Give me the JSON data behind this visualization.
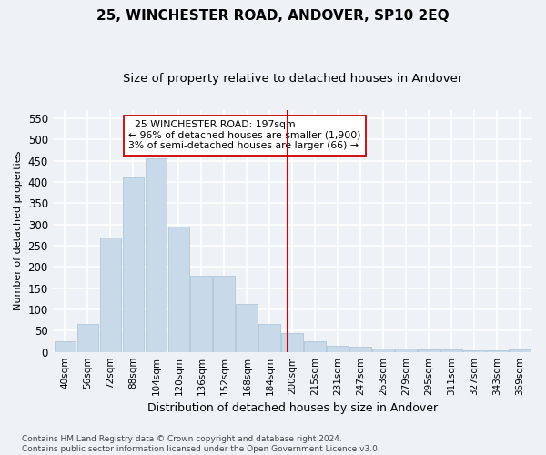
{
  "title": "25, WINCHESTER ROAD, ANDOVER, SP10 2EQ",
  "subtitle": "Size of property relative to detached houses in Andover",
  "xlabel": "Distribution of detached houses by size in Andover",
  "ylabel": "Number of detached properties",
  "footnote": "Contains HM Land Registry data © Crown copyright and database right 2024.\nContains public sector information licensed under the Open Government Licence v3.0.",
  "bins": [
    "40sqm",
    "56sqm",
    "72sqm",
    "88sqm",
    "104sqm",
    "120sqm",
    "136sqm",
    "152sqm",
    "168sqm",
    "184sqm",
    "200sqm",
    "215sqm",
    "231sqm",
    "247sqm",
    "263sqm",
    "279sqm",
    "295sqm",
    "311sqm",
    "327sqm",
    "343sqm",
    "359sqm"
  ],
  "bar_values": [
    25,
    65,
    270,
    410,
    455,
    295,
    180,
    180,
    113,
    65,
    45,
    25,
    15,
    13,
    8,
    8,
    5,
    5,
    3,
    3,
    5
  ],
  "bar_color": "#c8daea",
  "bar_edge_color": "#aec6d8",
  "vline_color": "#cc0000",
  "annotation_text": "  25 WINCHESTER ROAD: 197sqm\n← 96% of detached houses are smaller (1,900)\n3% of semi-detached houses are larger (66) →",
  "annotation_box_color": "#ffffff",
  "annotation_box_edge": "#cc0000",
  "ylim": [
    0,
    570
  ],
  "yticks": [
    0,
    50,
    100,
    150,
    200,
    250,
    300,
    350,
    400,
    450,
    500,
    550
  ],
  "bg_color": "#eef2f7",
  "plot_bg_color": "#eef2f7",
  "grid_color": "#ffffff",
  "title_fontsize": 11,
  "subtitle_fontsize": 9.5,
  "xlabel_fontsize": 9,
  "ylabel_fontsize": 8,
  "footnote_fontsize": 6.5
}
